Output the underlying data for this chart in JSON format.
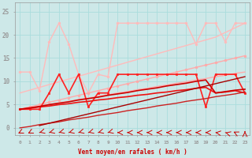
{
  "bg_color": "#cde8e8",
  "grid_color": "#aadddd",
  "x_labels": [
    "0",
    "1",
    "2",
    "3",
    "4",
    "5",
    "6",
    "7",
    "8",
    "9",
    "10",
    "11",
    "12",
    "13",
    "14",
    "15",
    "16",
    "17",
    "18",
    "19",
    "20",
    "21",
    "22",
    "23"
  ],
  "xlabel": "Vent moyen/en rafales ( km/h )",
  "xlabel_color": "#cc0000",
  "ylim": [
    -1.5,
    27
  ],
  "xlim": [
    -0.5,
    23.5
  ],
  "yticks": [
    0,
    5,
    10,
    15,
    20,
    25
  ],
  "lines": [
    {
      "name": "light_pink_diagonal_upper",
      "y": [
        7.5,
        8.1,
        8.7,
        9.3,
        9.9,
        10.5,
        11.1,
        11.7,
        12.3,
        12.9,
        13.5,
        14.1,
        14.7,
        15.3,
        15.9,
        16.5,
        17.1,
        17.7,
        18.3,
        18.9,
        19.5,
        20.5,
        21.5,
        22.5
      ],
      "color": "#ffbbbb",
      "lw": 1.0,
      "marker": null
    },
    {
      "name": "light_pink_jagged_with_markers",
      "y": [
        12.0,
        12.0,
        8.0,
        18.5,
        22.5,
        18.0,
        11.5,
        7.5,
        11.5,
        11.0,
        22.5,
        22.5,
        22.5,
        22.5,
        22.5,
        22.5,
        22.5,
        22.5,
        18.0,
        22.5,
        22.5,
        18.5,
        22.5,
        22.5
      ],
      "color": "#ffbbbb",
      "lw": 1.0,
      "marker": "o",
      "markersize": 2
    },
    {
      "name": "medium_pink_diagonal_upper",
      "y": [
        4.0,
        4.5,
        5.0,
        5.5,
        6.0,
        6.5,
        7.0,
        7.5,
        8.0,
        8.5,
        9.0,
        9.5,
        10.0,
        10.5,
        11.0,
        11.5,
        12.0,
        12.5,
        13.0,
        13.5,
        14.0,
        14.5,
        15.0,
        15.5
      ],
      "color": "#ffaaaa",
      "lw": 1.0,
      "marker": "o",
      "markersize": 2
    },
    {
      "name": "medium_pink_diagonal_lower",
      "y": [
        4.0,
        4.3,
        4.7,
        5.0,
        5.4,
        5.7,
        6.1,
        6.4,
        6.8,
        7.1,
        7.5,
        7.8,
        8.2,
        8.5,
        8.9,
        9.2,
        9.6,
        9.9,
        10.3,
        10.6,
        11.0,
        11.3,
        11.7,
        12.0
      ],
      "color": "#ffaaaa",
      "lw": 1.0,
      "marker": null
    },
    {
      "name": "bright_red_flat_with_markers",
      "y": [
        4.0,
        4.0,
        4.0,
        7.5,
        11.5,
        7.5,
        11.5,
        4.5,
        7.5,
        7.5,
        11.5,
        11.5,
        11.5,
        11.5,
        11.5,
        11.5,
        11.5,
        11.5,
        11.5,
        4.5,
        11.5,
        11.5,
        11.5,
        7.5
      ],
      "color": "#ff2222",
      "lw": 1.2,
      "marker": "s",
      "markersize": 2
    },
    {
      "name": "red_diagonal_1",
      "y": [
        4.0,
        4.2,
        4.5,
        4.7,
        5.0,
        5.2,
        5.5,
        5.7,
        6.0,
        6.2,
        6.5,
        6.7,
        7.0,
        7.2,
        7.5,
        7.7,
        8.0,
        8.2,
        8.5,
        8.7,
        7.5,
        7.7,
        8.0,
        7.5
      ],
      "color": "#ee1111",
      "lw": 1.2,
      "marker": null
    },
    {
      "name": "red_diagonal_2",
      "y": [
        4.0,
        4.3,
        4.6,
        5.0,
        5.3,
        5.6,
        6.0,
        6.3,
        6.6,
        7.0,
        7.3,
        7.6,
        8.0,
        8.3,
        8.6,
        9.0,
        9.3,
        9.6,
        10.0,
        10.3,
        7.5,
        7.8,
        8.1,
        8.3
      ],
      "color": "#cc0000",
      "lw": 1.2,
      "marker": null
    },
    {
      "name": "dark_red_diagonal_low1",
      "y": [
        0.0,
        0.3,
        0.7,
        1.0,
        1.3,
        1.7,
        2.0,
        2.3,
        2.7,
        3.0,
        3.3,
        3.7,
        4.0,
        4.3,
        4.7,
        5.0,
        5.3,
        5.7,
        6.0,
        6.3,
        6.7,
        7.0,
        7.3,
        7.7
      ],
      "color": "#cc2222",
      "lw": 1.0,
      "marker": null
    },
    {
      "name": "dark_red_diagonal_low2",
      "y": [
        null,
        null,
        0.5,
        1.0,
        1.5,
        2.0,
        2.5,
        3.0,
        3.5,
        4.0,
        4.5,
        5.0,
        5.5,
        6.0,
        6.5,
        7.0,
        7.5,
        8.0,
        8.5,
        9.0,
        9.5,
        10.0,
        10.5,
        11.0
      ],
      "color": "#aa0000",
      "lw": 1.0,
      "marker": null
    }
  ],
  "arrow_angles": [
    225,
    225,
    240,
    240,
    240,
    240,
    240,
    240,
    240,
    240,
    270,
    270,
    270,
    270,
    270,
    270,
    270,
    270,
    270,
    270,
    285,
    300,
    315,
    360
  ],
  "arrow_color": "#cc0000"
}
